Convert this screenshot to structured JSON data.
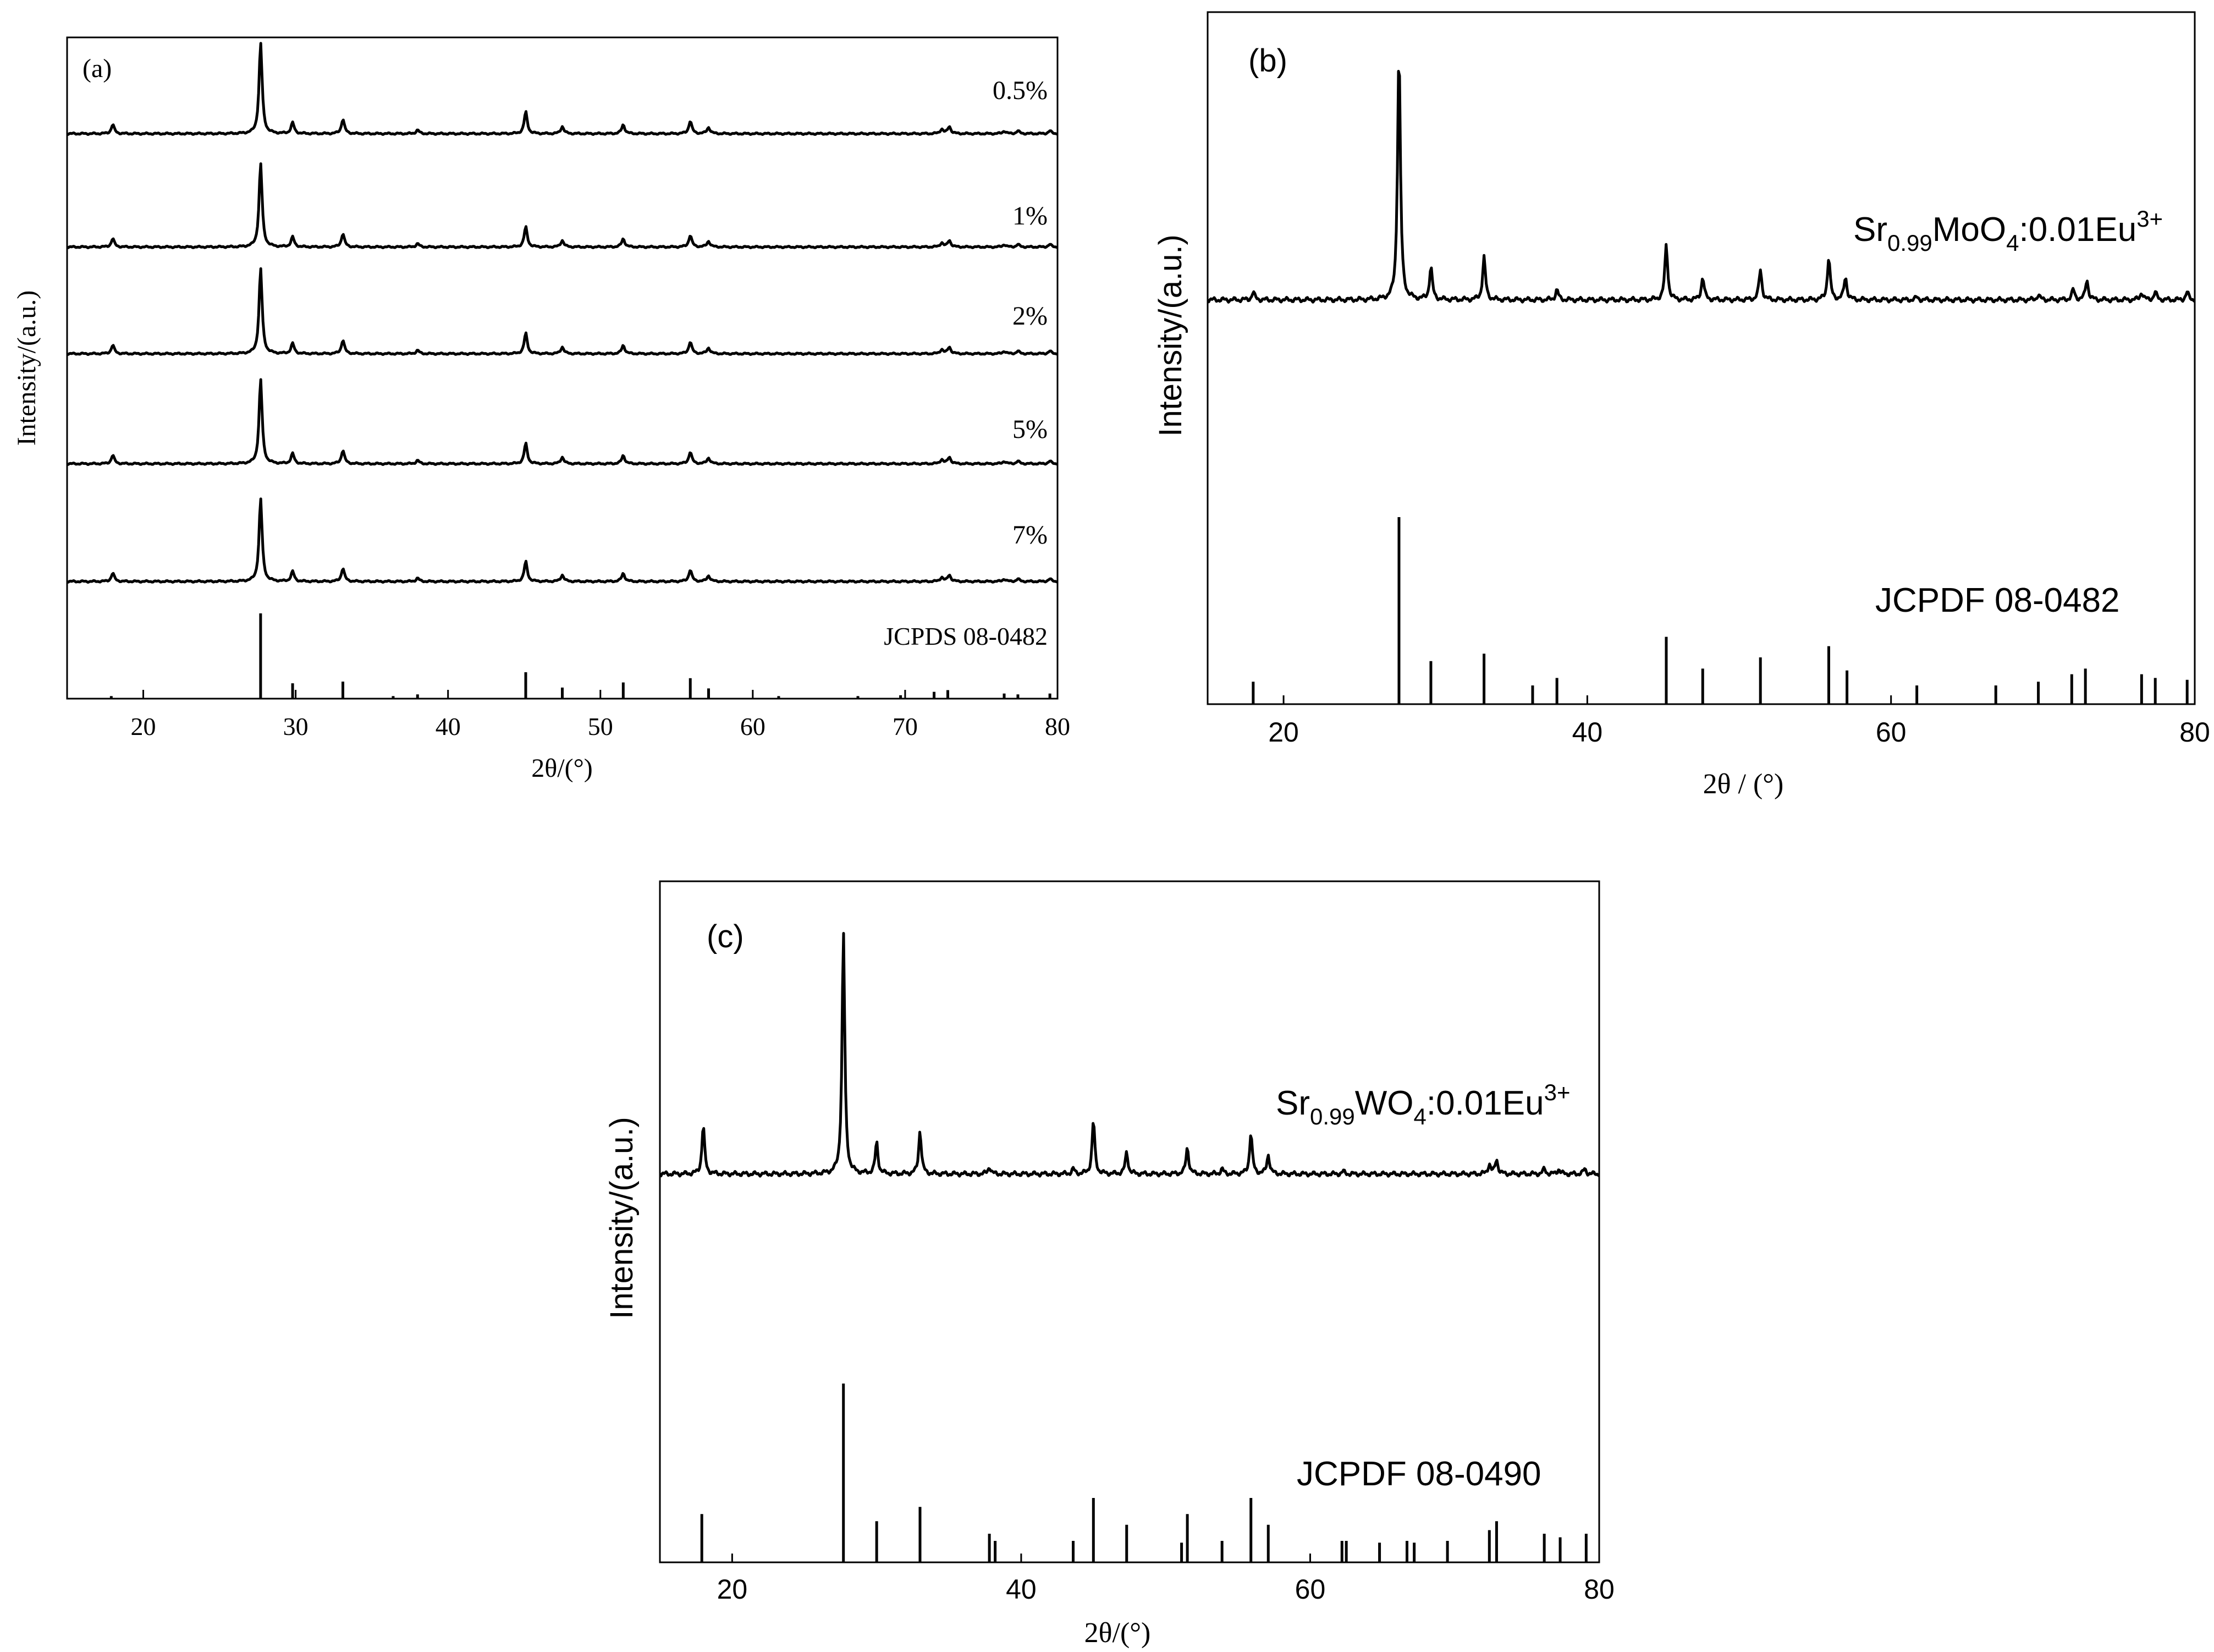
{
  "figure": "XRD patterns",
  "chart_data": [
    {
      "id": "a",
      "type": "line",
      "panel_label": "(a)",
      "xlabel": "2θ/(°)",
      "ylabel": "Intensity/(a.u.)",
      "xlim": [
        15,
        80
      ],
      "xticks": [
        20,
        30,
        40,
        50,
        60,
        70,
        80
      ],
      "peaks": [
        {
          "x": 18.0,
          "h": 0.1
        },
        {
          "x": 27.7,
          "h": 1.0
        },
        {
          "x": 29.8,
          "h": 0.12
        },
        {
          "x": 33.1,
          "h": 0.16
        },
        {
          "x": 38.0,
          "h": 0.04
        },
        {
          "x": 45.1,
          "h": 0.24
        },
        {
          "x": 47.5,
          "h": 0.08
        },
        {
          "x": 51.5,
          "h": 0.1
        },
        {
          "x": 55.9,
          "h": 0.14
        },
        {
          "x": 57.1,
          "h": 0.07
        },
        {
          "x": 72.4,
          "h": 0.05
        },
        {
          "x": 72.9,
          "h": 0.08
        },
        {
          "x": 76.5,
          "h": 0.03
        },
        {
          "x": 77.4,
          "h": 0.03
        },
        {
          "x": 79.5,
          "h": 0.03
        }
      ],
      "series": [
        {
          "name": "0.5%",
          "scale": 1.0
        },
        {
          "name": "1%",
          "scale": 0.95
        },
        {
          "name": "2%",
          "scale": 0.97
        },
        {
          "name": "5%",
          "scale": 0.96
        },
        {
          "name": "7%",
          "scale": 0.93
        }
      ],
      "reference": {
        "name": "JCPDS 08-0482",
        "x": [
          17.9,
          27.7,
          29.8,
          33.1,
          36.4,
          38.0,
          45.1,
          47.5,
          51.5,
          55.9,
          57.1,
          61.7,
          66.9,
          69.7,
          71.9,
          72.8,
          76.5,
          77.4,
          79.5
        ],
        "y": [
          0.03,
          1.0,
          0.18,
          0.2,
          0.03,
          0.05,
          0.31,
          0.13,
          0.19,
          0.24,
          0.12,
          0.03,
          0.03,
          0.04,
          0.08,
          0.1,
          0.06,
          0.05,
          0.06
        ]
      }
    },
    {
      "id": "b",
      "type": "line",
      "panel_label": "(b)",
      "xlabel": "2θ / (°)",
      "ylabel": "Intensity/(a.u.)",
      "xlim": [
        15,
        80
      ],
      "xticks": [
        20,
        40,
        60,
        80
      ],
      "series": [
        {
          "name_main": "Sr",
          "name_sub": "0.99",
          "name_mid": "MoO",
          "name_sub2": "4",
          "name_tail": ":0.01Eu",
          "name_sup": "3+",
          "peaks": [
            {
              "x": 18.0,
              "h": 0.03
            },
            {
              "x": 27.6,
              "h": 1.0
            },
            {
              "x": 29.7,
              "h": 0.13
            },
            {
              "x": 33.2,
              "h": 0.17
            },
            {
              "x": 38.0,
              "h": 0.04
            },
            {
              "x": 45.2,
              "h": 0.22
            },
            {
              "x": 47.6,
              "h": 0.09
            },
            {
              "x": 51.4,
              "h": 0.12
            },
            {
              "x": 55.9,
              "h": 0.17
            },
            {
              "x": 57.0,
              "h": 0.09
            },
            {
              "x": 61.7,
              "h": 0.01
            },
            {
              "x": 69.7,
              "h": 0.02
            },
            {
              "x": 72.0,
              "h": 0.04
            },
            {
              "x": 72.9,
              "h": 0.08
            },
            {
              "x": 76.5,
              "h": 0.03
            },
            {
              "x": 77.4,
              "h": 0.03
            },
            {
              "x": 79.5,
              "h": 0.03
            }
          ]
        }
      ],
      "reference": {
        "name": "JCPDF 08-0482",
        "x": [
          18.0,
          27.6,
          29.7,
          33.2,
          36.4,
          38.0,
          45.2,
          47.6,
          51.4,
          55.9,
          57.1,
          61.7,
          66.9,
          69.7,
          71.9,
          72.8,
          76.5,
          77.4,
          79.5
        ],
        "y": [
          0.12,
          1.0,
          0.23,
          0.27,
          0.1,
          0.14,
          0.36,
          0.19,
          0.25,
          0.31,
          0.18,
          0.1,
          0.1,
          0.12,
          0.16,
          0.19,
          0.16,
          0.14,
          0.13
        ]
      }
    },
    {
      "id": "c",
      "type": "line",
      "panel_label": "(c)",
      "xlabel": "2θ/(°)",
      "ylabel": "Intensity/(a.u.)",
      "xlim": [
        15,
        80
      ],
      "xticks": [
        20,
        40,
        60,
        80
      ],
      "series": [
        {
          "name_main": "Sr",
          "name_sub": "0.99",
          "name_mid": "WO",
          "name_sub2": "4",
          "name_tail": ":0.01Eu",
          "name_sup": "3+",
          "peaks": [
            {
              "x": 18.0,
              "h": 0.2
            },
            {
              "x": 27.7,
              "h": 1.0
            },
            {
              "x": 30.0,
              "h": 0.13
            },
            {
              "x": 33.0,
              "h": 0.18
            },
            {
              "x": 37.8,
              "h": 0.03
            },
            {
              "x": 43.6,
              "h": 0.02
            },
            {
              "x": 45.0,
              "h": 0.22
            },
            {
              "x": 47.3,
              "h": 0.09
            },
            {
              "x": 51.5,
              "h": 0.11
            },
            {
              "x": 53.9,
              "h": 0.02
            },
            {
              "x": 55.9,
              "h": 0.17
            },
            {
              "x": 57.1,
              "h": 0.08
            },
            {
              "x": 62.3,
              "h": 0.01
            },
            {
              "x": 72.4,
              "h": 0.04
            },
            {
              "x": 72.9,
              "h": 0.06
            },
            {
              "x": 76.2,
              "h": 0.02
            },
            {
              "x": 77.2,
              "h": 0.02
            },
            {
              "x": 79.0,
              "h": 0.02
            }
          ]
        }
      ],
      "reference": {
        "name": "JCPDF 08-0490",
        "x": [
          17.9,
          27.7,
          30.0,
          33.0,
          37.8,
          38.2,
          43.6,
          45.0,
          47.3,
          51.1,
          51.5,
          53.9,
          55.9,
          57.1,
          62.2,
          62.5,
          64.8,
          66.7,
          67.2,
          69.5,
          72.4,
          72.9,
          76.2,
          77.3,
          79.1
        ],
        "y": [
          0.27,
          1.0,
          0.23,
          0.31,
          0.16,
          0.12,
          0.12,
          0.36,
          0.21,
          0.11,
          0.27,
          0.12,
          0.36,
          0.21,
          0.12,
          0.12,
          0.11,
          0.12,
          0.11,
          0.12,
          0.18,
          0.23,
          0.16,
          0.14,
          0.16
        ]
      }
    }
  ]
}
